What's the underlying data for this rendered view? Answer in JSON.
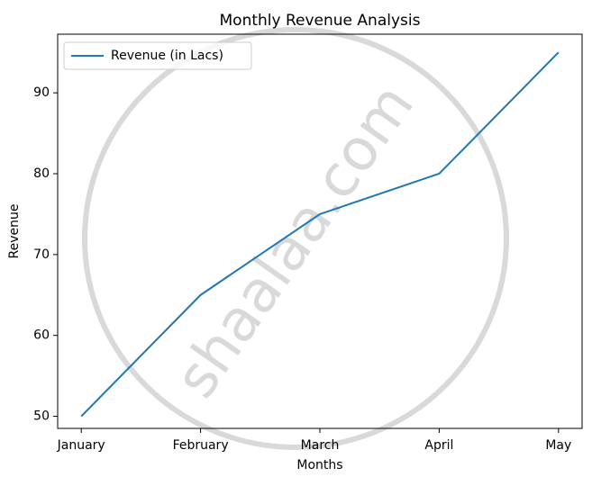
{
  "chart_data": {
    "type": "line",
    "title": "Monthly Revenue Analysis",
    "xlabel": "Months",
    "ylabel": "Revenue",
    "categories": [
      "January",
      "February",
      "March",
      "April",
      "May"
    ],
    "series": [
      {
        "name": "Revenue (in Lacs)",
        "values": [
          50,
          65,
          75,
          80,
          95
        ],
        "color": "#1f77b4"
      }
    ],
    "yticks": [
      50,
      60,
      70,
      80,
      90
    ],
    "ylim": [
      48.5,
      97.25
    ],
    "grid": false,
    "legend_position": "upper left"
  },
  "watermark": {
    "text": "shaalaa.com",
    "color": "#cccccc"
  }
}
